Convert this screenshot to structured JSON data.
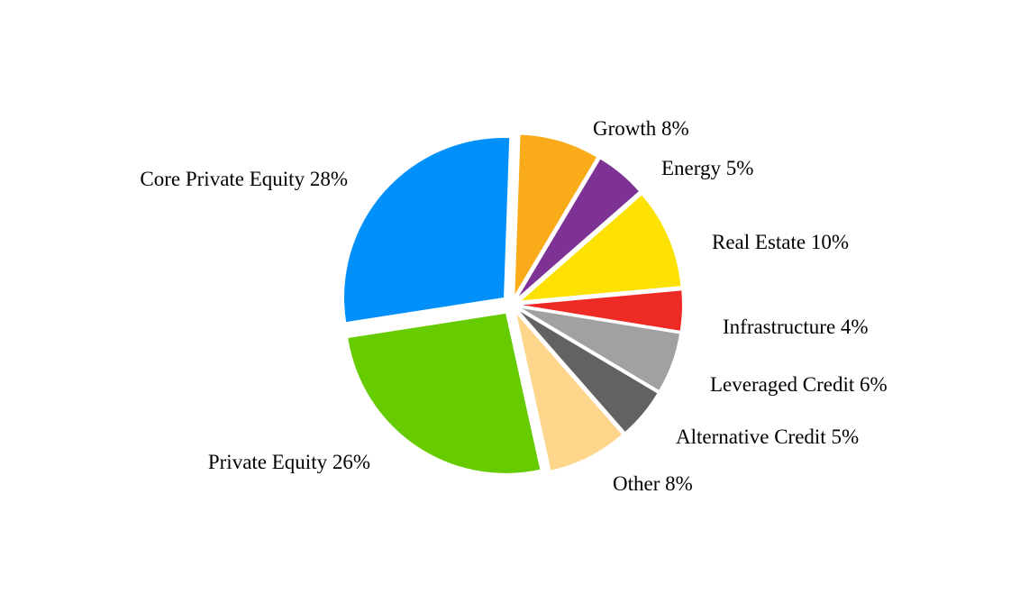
{
  "chart_data": {
    "type": "pie",
    "slices": [
      {
        "name": "Growth",
        "value": 8,
        "label": "Growth 8%",
        "color": "#F9AB1A"
      },
      {
        "name": "Energy",
        "value": 5,
        "label": "Energy 5%",
        "color": "#7E3294"
      },
      {
        "name": "Real Estate",
        "value": 10,
        "label": "Real Estate 10%",
        "color": "#FDE100"
      },
      {
        "name": "Infrastructure",
        "value": 4,
        "label": "Infrastructure 4%",
        "color": "#EE2A24"
      },
      {
        "name": "Leveraged Credit",
        "value": 6,
        "label": "Leveraged Credit 6%",
        "color": "#A1A1A1"
      },
      {
        "name": "Alternative Credit",
        "value": 5,
        "label": "Alternative Credit 5%",
        "color": "#626262"
      },
      {
        "name": "Other",
        "value": 8,
        "label": "Other 8%",
        "color": "#FDD68C"
      },
      {
        "name": "Private Equity",
        "value": 26,
        "label": "Private Equity 26%",
        "color": "#66CC00"
      },
      {
        "name": "Core Private Equity",
        "value": 28,
        "label": "Core Private Equity 28%",
        "color": "#0090FB"
      }
    ]
  }
}
